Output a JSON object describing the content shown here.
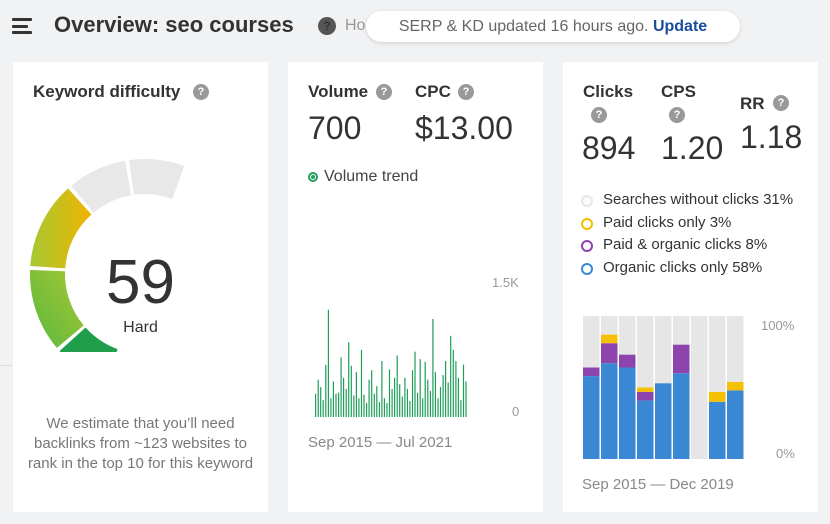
{
  "header": {
    "title": "Overview: seo courses",
    "cut_text": "Ho",
    "notice_text": "SERP & KD updated 16 hours ago.",
    "notice_link": "Update"
  },
  "keyword_difficulty": {
    "label": "Keyword difficulty",
    "value": "59",
    "level": "Hard",
    "description": "We estimate that you’ll need backlinks from ~123 websites to rank in the top 10 for this keyword",
    "gauge_colors": [
      "#1f9e4c",
      "#5bb73f",
      "#a5c833",
      "#d4c20a",
      "#f0b400",
      "#e8e8e8"
    ]
  },
  "volume_card": {
    "volume_label": "Volume",
    "volume_value": "700",
    "cpc_label": "CPC",
    "cpc_value": "$13.00",
    "trend_label": "Volume trend",
    "y_max_label": "1.5K",
    "y_min_label": "0",
    "date_range": "Sep 2015 — Jul 2021",
    "color": "#1f9e5a"
  },
  "clicks_card": {
    "clicks_label": "Clicks",
    "clicks_value": "894",
    "cps_label": "CPS",
    "cps_value": "1.20",
    "rr_label": "RR",
    "rr_value": "1.18",
    "legend": [
      {
        "label": "Searches without clicks 31%",
        "color": "#e6e6e6"
      },
      {
        "label": "Paid clicks only 3%",
        "color": "#f5c000"
      },
      {
        "label": "Paid & organic clicks 8%",
        "color": "#8e44ad"
      },
      {
        "label": "Organic clicks only 58%",
        "color": "#3a87d4"
      }
    ],
    "y_max_label": "100%",
    "y_min_label": "0%",
    "date_range": "Sep 2015 — Dec 2019"
  },
  "chart_data": [
    {
      "type": "bar",
      "title": "Volume trend",
      "x_range": [
        "Sep 2015",
        "Jul 2021"
      ],
      "ylim": [
        0,
        1500
      ],
      "values": [
        250,
        400,
        320,
        180,
        560,
        1150,
        200,
        380,
        250,
        260,
        640,
        420,
        300,
        800,
        550,
        230,
        480,
        200,
        720,
        240,
        150,
        400,
        500,
        250,
        330,
        160,
        600,
        200,
        150,
        510,
        300,
        420,
        660,
        350,
        220,
        420,
        300,
        170,
        500,
        700,
        260,
        620,
        200,
        590,
        400,
        280,
        1050,
        480,
        200,
        320,
        450,
        600,
        370,
        870,
        720,
        600,
        420,
        180,
        560,
        380
      ],
      "color": "#1f9e5a"
    },
    {
      "type": "bar",
      "title": "Clicks distribution",
      "x_range": [
        "Sep 2015",
        "Dec 2019"
      ],
      "ylim": [
        0,
        100
      ],
      "series": [
        {
          "name": "Organic clicks only",
          "values": [
            58,
            67,
            64,
            41,
            53,
            60,
            0,
            40,
            48
          ],
          "color": "#3a87d4"
        },
        {
          "name": "Paid & organic clicks",
          "values": [
            6,
            14,
            9,
            6,
            0,
            20,
            0,
            0,
            0
          ],
          "color": "#8e44ad"
        },
        {
          "name": "Paid clicks only",
          "values": [
            0,
            6,
            0,
            3,
            0,
            0,
            0,
            7,
            6
          ],
          "color": "#f5c000"
        },
        {
          "name": "Searches without clicks",
          "values": [
            36,
            13,
            27,
            50,
            47,
            20,
            100,
            53,
            46
          ],
          "color": "#e6e6e6"
        }
      ]
    }
  ]
}
